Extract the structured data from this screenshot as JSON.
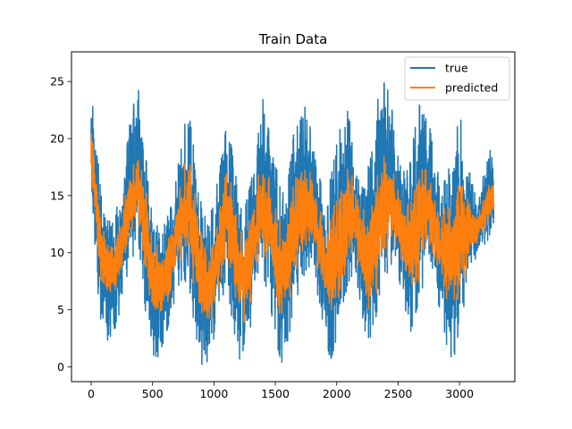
{
  "chart_data": {
    "type": "line",
    "title": "Train Data",
    "xlabel": "",
    "ylabel": "",
    "xlim": [
      -160,
      3450
    ],
    "ylim": [
      -1.3,
      27.6
    ],
    "xticks": [
      0,
      500,
      1000,
      1500,
      2000,
      2500,
      3000
    ],
    "yticks": [
      0,
      5,
      10,
      15,
      20,
      25
    ],
    "grid": false,
    "legend": "top-right",
    "n_points": 3280,
    "series": [
      {
        "name": "true",
        "color": "#1f77b4",
        "envelope": {
          "x": [
            0,
            30,
            60,
            100,
            150,
            200,
            250,
            300,
            350,
            380,
            410,
            450,
            500,
            550,
            600,
            650,
            700,
            750,
            800,
            850,
            900,
            950,
            1000,
            1050,
            1100,
            1150,
            1200,
            1250,
            1300,
            1350,
            1400,
            1450,
            1500,
            1550,
            1600,
            1650,
            1700,
            1750,
            1800,
            1850,
            1900,
            1950,
            2000,
            2050,
            2100,
            2150,
            2200,
            2250,
            2300,
            2350,
            2400,
            2450,
            2500,
            2550,
            2600,
            2650,
            2700,
            2750,
            2800,
            2850,
            2900,
            2950,
            3000,
            3050,
            3100,
            3150,
            3200,
            3250,
            3280
          ],
          "max": [
            25.0,
            22.0,
            18.0,
            14.0,
            13.0,
            13.5,
            16.0,
            20.0,
            24.5,
            26.3,
            22.0,
            18.0,
            13.5,
            12.0,
            12.5,
            14.0,
            17.0,
            21.0,
            22.0,
            18.0,
            14.0,
            12.5,
            14.5,
            17.5,
            21.0,
            19.0,
            15.0,
            14.0,
            16.0,
            19.5,
            23.5,
            22.0,
            18.0,
            15.0,
            16.0,
            20.5,
            21.5,
            23.0,
            20.0,
            17.0,
            15.0,
            16.5,
            19.5,
            22.0,
            22.5,
            19.0,
            16.5,
            17.0,
            21.0,
            24.5,
            25.0,
            22.5,
            19.0,
            17.0,
            18.0,
            22.0,
            24.0,
            21.5,
            18.0,
            16.0,
            16.5,
            20.0,
            22.5,
            18.5,
            17.0,
            15.0,
            17.0,
            19.0,
            19.5
          ],
          "min": [
            13.5,
            10.0,
            6.0,
            2.0,
            2.5,
            3.5,
            5.5,
            8.0,
            10.0,
            11.5,
            8.5,
            4.0,
            0.0,
            1.0,
            2.5,
            4.5,
            6.5,
            8.0,
            6.5,
            3.0,
            0.0,
            0.5,
            2.5,
            5.0,
            7.5,
            4.0,
            0.2,
            0.2,
            3.5,
            6.0,
            8.0,
            6.0,
            2.5,
            0.3,
            2.0,
            5.0,
            7.0,
            8.5,
            9.0,
            6.0,
            3.0,
            0.5,
            2.5,
            5.5,
            7.5,
            8.5,
            5.0,
            2.0,
            3.0,
            6.5,
            8.0,
            9.0,
            8.0,
            5.5,
            3.0,
            5.0,
            7.0,
            9.5,
            7.5,
            4.0,
            1.5,
            0.5,
            3.5,
            6.0,
            8.0,
            9.5,
            10.5,
            11.5,
            12.0
          ]
        }
      },
      {
        "name": "predicted",
        "color": "#ff7f0e",
        "envelope": {
          "x": [
            0,
            30,
            60,
            100,
            150,
            200,
            250,
            300,
            350,
            380,
            410,
            450,
            500,
            550,
            600,
            650,
            700,
            750,
            800,
            850,
            900,
            950,
            1000,
            1050,
            1100,
            1150,
            1200,
            1250,
            1300,
            1350,
            1400,
            1450,
            1500,
            1550,
            1600,
            1650,
            1700,
            1750,
            1800,
            1850,
            1900,
            1950,
            2000,
            2050,
            2100,
            2150,
            2200,
            2250,
            2300,
            2350,
            2400,
            2450,
            2500,
            2550,
            2600,
            2650,
            2700,
            2750,
            2800,
            2850,
            2900,
            2950,
            3000,
            3050,
            3100,
            3150,
            3200,
            3250,
            3280
          ],
          "max": [
            21.5,
            19.0,
            16.0,
            12.5,
            11.5,
            12.0,
            14.0,
            16.5,
            19.0,
            21.0,
            19.0,
            15.5,
            12.0,
            11.0,
            11.0,
            12.5,
            15.0,
            18.0,
            19.8,
            16.0,
            12.5,
            11.0,
            12.5,
            15.0,
            18.0,
            16.5,
            13.0,
            12.0,
            14.0,
            17.0,
            18.5,
            18.0,
            15.5,
            13.0,
            14.0,
            17.5,
            18.0,
            18.5,
            17.0,
            15.0,
            13.5,
            14.0,
            16.0,
            18.0,
            18.5,
            17.0,
            14.5,
            14.0,
            16.5,
            19.0,
            19.5,
            18.5,
            17.0,
            15.0,
            15.5,
            18.0,
            19.0,
            18.0,
            15.5,
            14.0,
            14.5,
            16.5,
            18.0,
            16.5,
            15.0,
            14.0,
            15.0,
            17.0,
            17.5
          ],
          "min": [
            15.0,
            12.5,
            8.0,
            5.5,
            5.8,
            6.0,
            7.5,
            9.5,
            11.5,
            12.5,
            10.0,
            6.5,
            3.5,
            3.5,
            4.5,
            6.0,
            7.5,
            9.5,
            8.5,
            5.5,
            3.0,
            3.0,
            4.0,
            6.5,
            9.0,
            6.5,
            3.5,
            3.0,
            5.0,
            7.5,
            9.5,
            8.0,
            5.0,
            3.2,
            4.5,
            6.5,
            8.5,
            9.5,
            10.0,
            8.0,
            5.5,
            4.0,
            4.5,
            6.5,
            8.5,
            9.5,
            7.0,
            4.5,
            5.0,
            7.5,
            9.0,
            10.0,
            9.0,
            7.5,
            5.5,
            6.5,
            8.5,
            10.5,
            9.0,
            6.5,
            4.5,
            4.0,
            5.5,
            7.5,
            9.0,
            10.5,
            11.5,
            12.5,
            13.0
          ]
        }
      }
    ]
  }
}
